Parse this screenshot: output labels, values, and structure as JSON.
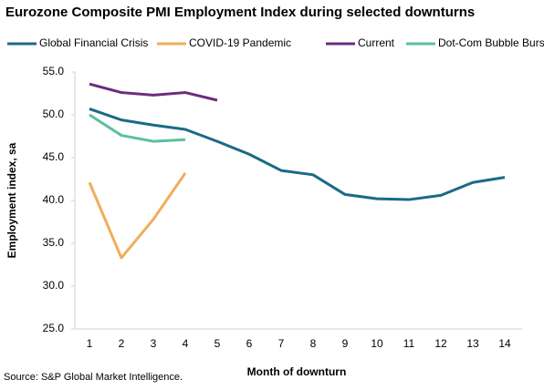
{
  "chart_data": {
    "type": "line",
    "title": "Eurozone Composite PMI Employment Index during selected downturns",
    "x_label": "Month of downturn",
    "y_label": "Employment index, sa",
    "source": "Source: S&P Global Market Intelligence.",
    "categories": [
      "1",
      "2",
      "3",
      "4",
      "5",
      "6",
      "7",
      "8",
      "9",
      "10",
      "11",
      "12",
      "13",
      "14"
    ],
    "series": [
      {
        "name": "Global Financial Crisis",
        "color": "#1b6a87",
        "values": [
          50.7,
          49.4,
          48.8,
          48.3,
          46.9,
          45.4,
          43.5,
          43.0,
          40.7,
          40.2,
          40.1,
          40.6,
          42.1,
          42.7
        ]
      },
      {
        "name": "COVID-19 Pandemic",
        "color": "#f0ad5a",
        "values": [
          42.1,
          33.3,
          37.8,
          43.2,
          null,
          null,
          null,
          null,
          null,
          null,
          null,
          null,
          null,
          null
        ]
      },
      {
        "name": "Current",
        "color": "#6b2c7d",
        "values": [
          53.6,
          52.6,
          52.3,
          52.6,
          51.7,
          null,
          null,
          null,
          null,
          null,
          null,
          null,
          null,
          null
        ]
      },
      {
        "name": "Dot-Com Bubble Burst",
        "color": "#5cbf9f",
        "values": [
          50.0,
          47.6,
          46.9,
          47.1,
          null,
          null,
          null,
          null,
          null,
          null,
          null,
          null,
          null,
          null
        ]
      }
    ],
    "ylim": [
      25,
      55
    ],
    "yticks": [
      {
        "value": 25,
        "label": "25.0"
      },
      {
        "value": 30,
        "label": "30.0"
      },
      {
        "value": 35,
        "label": "35.0"
      },
      {
        "value": 40,
        "label": "40.0"
      },
      {
        "value": 45,
        "label": "45.0"
      },
      {
        "value": 50,
        "label": "50.0"
      },
      {
        "value": 55,
        "label": "55.0"
      }
    ],
    "legend": "top"
  }
}
